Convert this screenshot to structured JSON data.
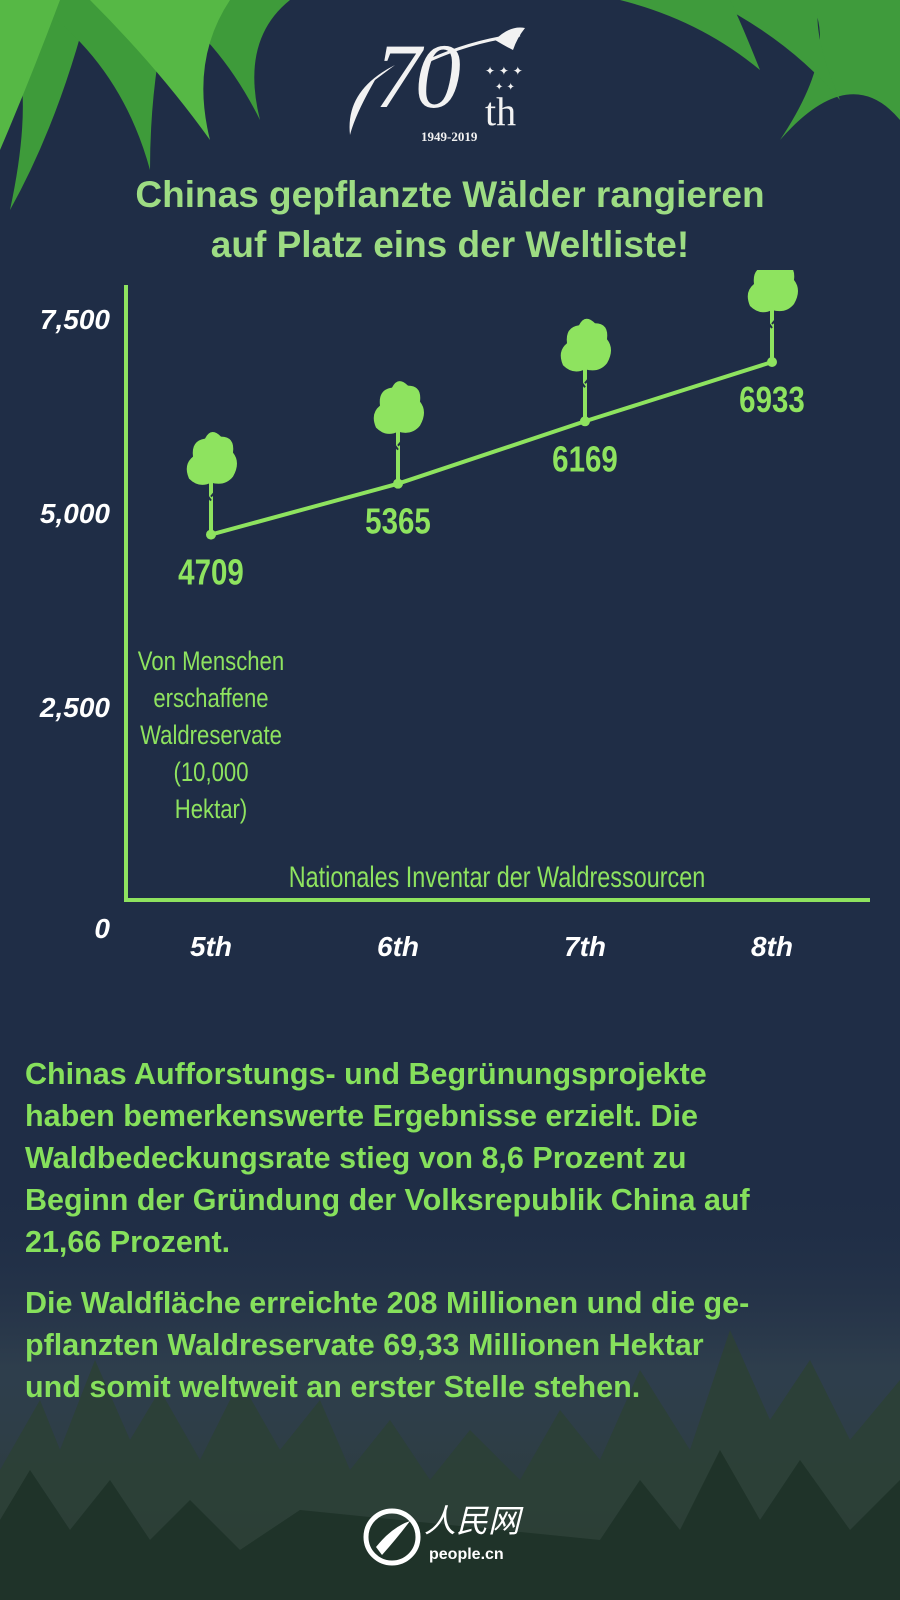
{
  "logo": {
    "number": "70",
    "suffix": "th",
    "years": "1949-2019"
  },
  "title": {
    "line1": "Chinas gepflanzte Wälder rangieren",
    "line2": "auf Platz eins der Weltliste!"
  },
  "colors": {
    "background": "#1f2d46",
    "accent": "#8ee35f",
    "title": "#9ddc83",
    "axis_text": "#ffffff"
  },
  "chart_data": {
    "type": "line",
    "categories": [
      "5th",
      "6th",
      "7th",
      "8th"
    ],
    "values": [
      4709,
      5365,
      6169,
      6933
    ],
    "yticks": [
      "0",
      "2,500",
      "5,000",
      "7,500"
    ],
    "ylim": [
      0,
      7500
    ],
    "xlabel": "Nationales Inventar der Waldressourcen",
    "ylabel_lines": [
      "Von Menschen",
      "erschaffene",
      "Waldreservate",
      "(10,000",
      "Hektar)"
    ],
    "marker": "tree-icon",
    "grid": false
  },
  "paragraphs": [
    [
      "Chinas Aufforstungs- und Begrünungsprojekte",
      "haben bemerkenswerte Ergebnisse erzielt. Die",
      "Waldbedeckungsrate stieg von 8,6 Prozent zu",
      "Beginn der Gründung der Volksrepublik China auf",
      "21,66 Prozent."
    ],
    [
      "Die Waldfläche erreichte 208 Millionen und die ge-",
      "pflanzten Waldreservate 69,33 Millionen Hektar",
      "und somit weltweit an erster Stelle stehen."
    ]
  ],
  "footer": {
    "brand_cn": "人民网",
    "brand_en": "people.cn"
  }
}
